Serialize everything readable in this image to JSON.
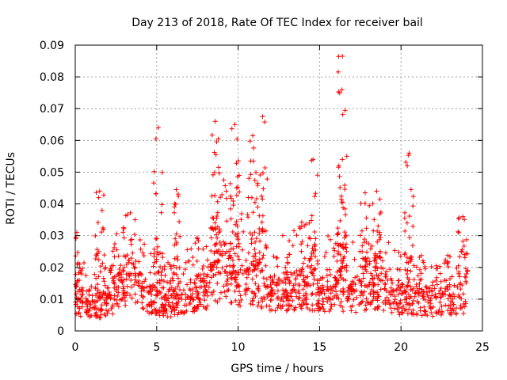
{
  "chart_data": {
    "type": "scatter",
    "title": "Day 213 of 2018, Rate Of TEC Index for receiver bail",
    "xlabel": "GPS time / hours",
    "ylabel": "ROTI / TECUs",
    "xlim": [
      0,
      25
    ],
    "ylim": [
      0,
      0.09
    ],
    "xticks": [
      0,
      5,
      10,
      15,
      20,
      25
    ],
    "yticks": [
      0,
      0.01,
      0.02,
      0.03,
      0.04,
      0.05,
      0.06,
      0.07,
      0.08,
      0.09
    ],
    "xtick_labels": [
      "0",
      "5",
      "10",
      "15",
      "20",
      "25"
    ],
    "ytick_labels": [
      "0",
      "0.01",
      "0.02",
      "0.03",
      "0.04",
      "0.05",
      "0.06",
      "0.07",
      "0.08",
      "0.09"
    ],
    "grid": true,
    "marker": "+",
    "series": [
      {
        "name": "ROTI",
        "color": "#ff0000",
        "x_range": [
          0,
          24
        ],
        "typical_band": [
          0.004,
          0.02
        ],
        "notable_points": [
          {
            "x": 16.4,
            "y": 0.0865
          },
          {
            "x": 11.5,
            "y": 0.0675
          },
          {
            "x": 8.6,
            "y": 0.066
          },
          {
            "x": 9.8,
            "y": 0.065
          },
          {
            "x": 5.1,
            "y": 0.064
          },
          {
            "x": 10.9,
            "y": 0.0615
          },
          {
            "x": 20.5,
            "y": 0.056
          },
          {
            "x": 14.6,
            "y": 0.054
          },
          {
            "x": 16.4,
            "y": 0.054
          },
          {
            "x": 6.2,
            "y": 0.0445
          },
          {
            "x": 1.5,
            "y": 0.044
          },
          {
            "x": 17.8,
            "y": 0.0435
          },
          {
            "x": 18.5,
            "y": 0.044
          },
          {
            "x": 0.1,
            "y": 0.031
          },
          {
            "x": 23.8,
            "y": 0.036
          }
        ]
      }
    ]
  }
}
